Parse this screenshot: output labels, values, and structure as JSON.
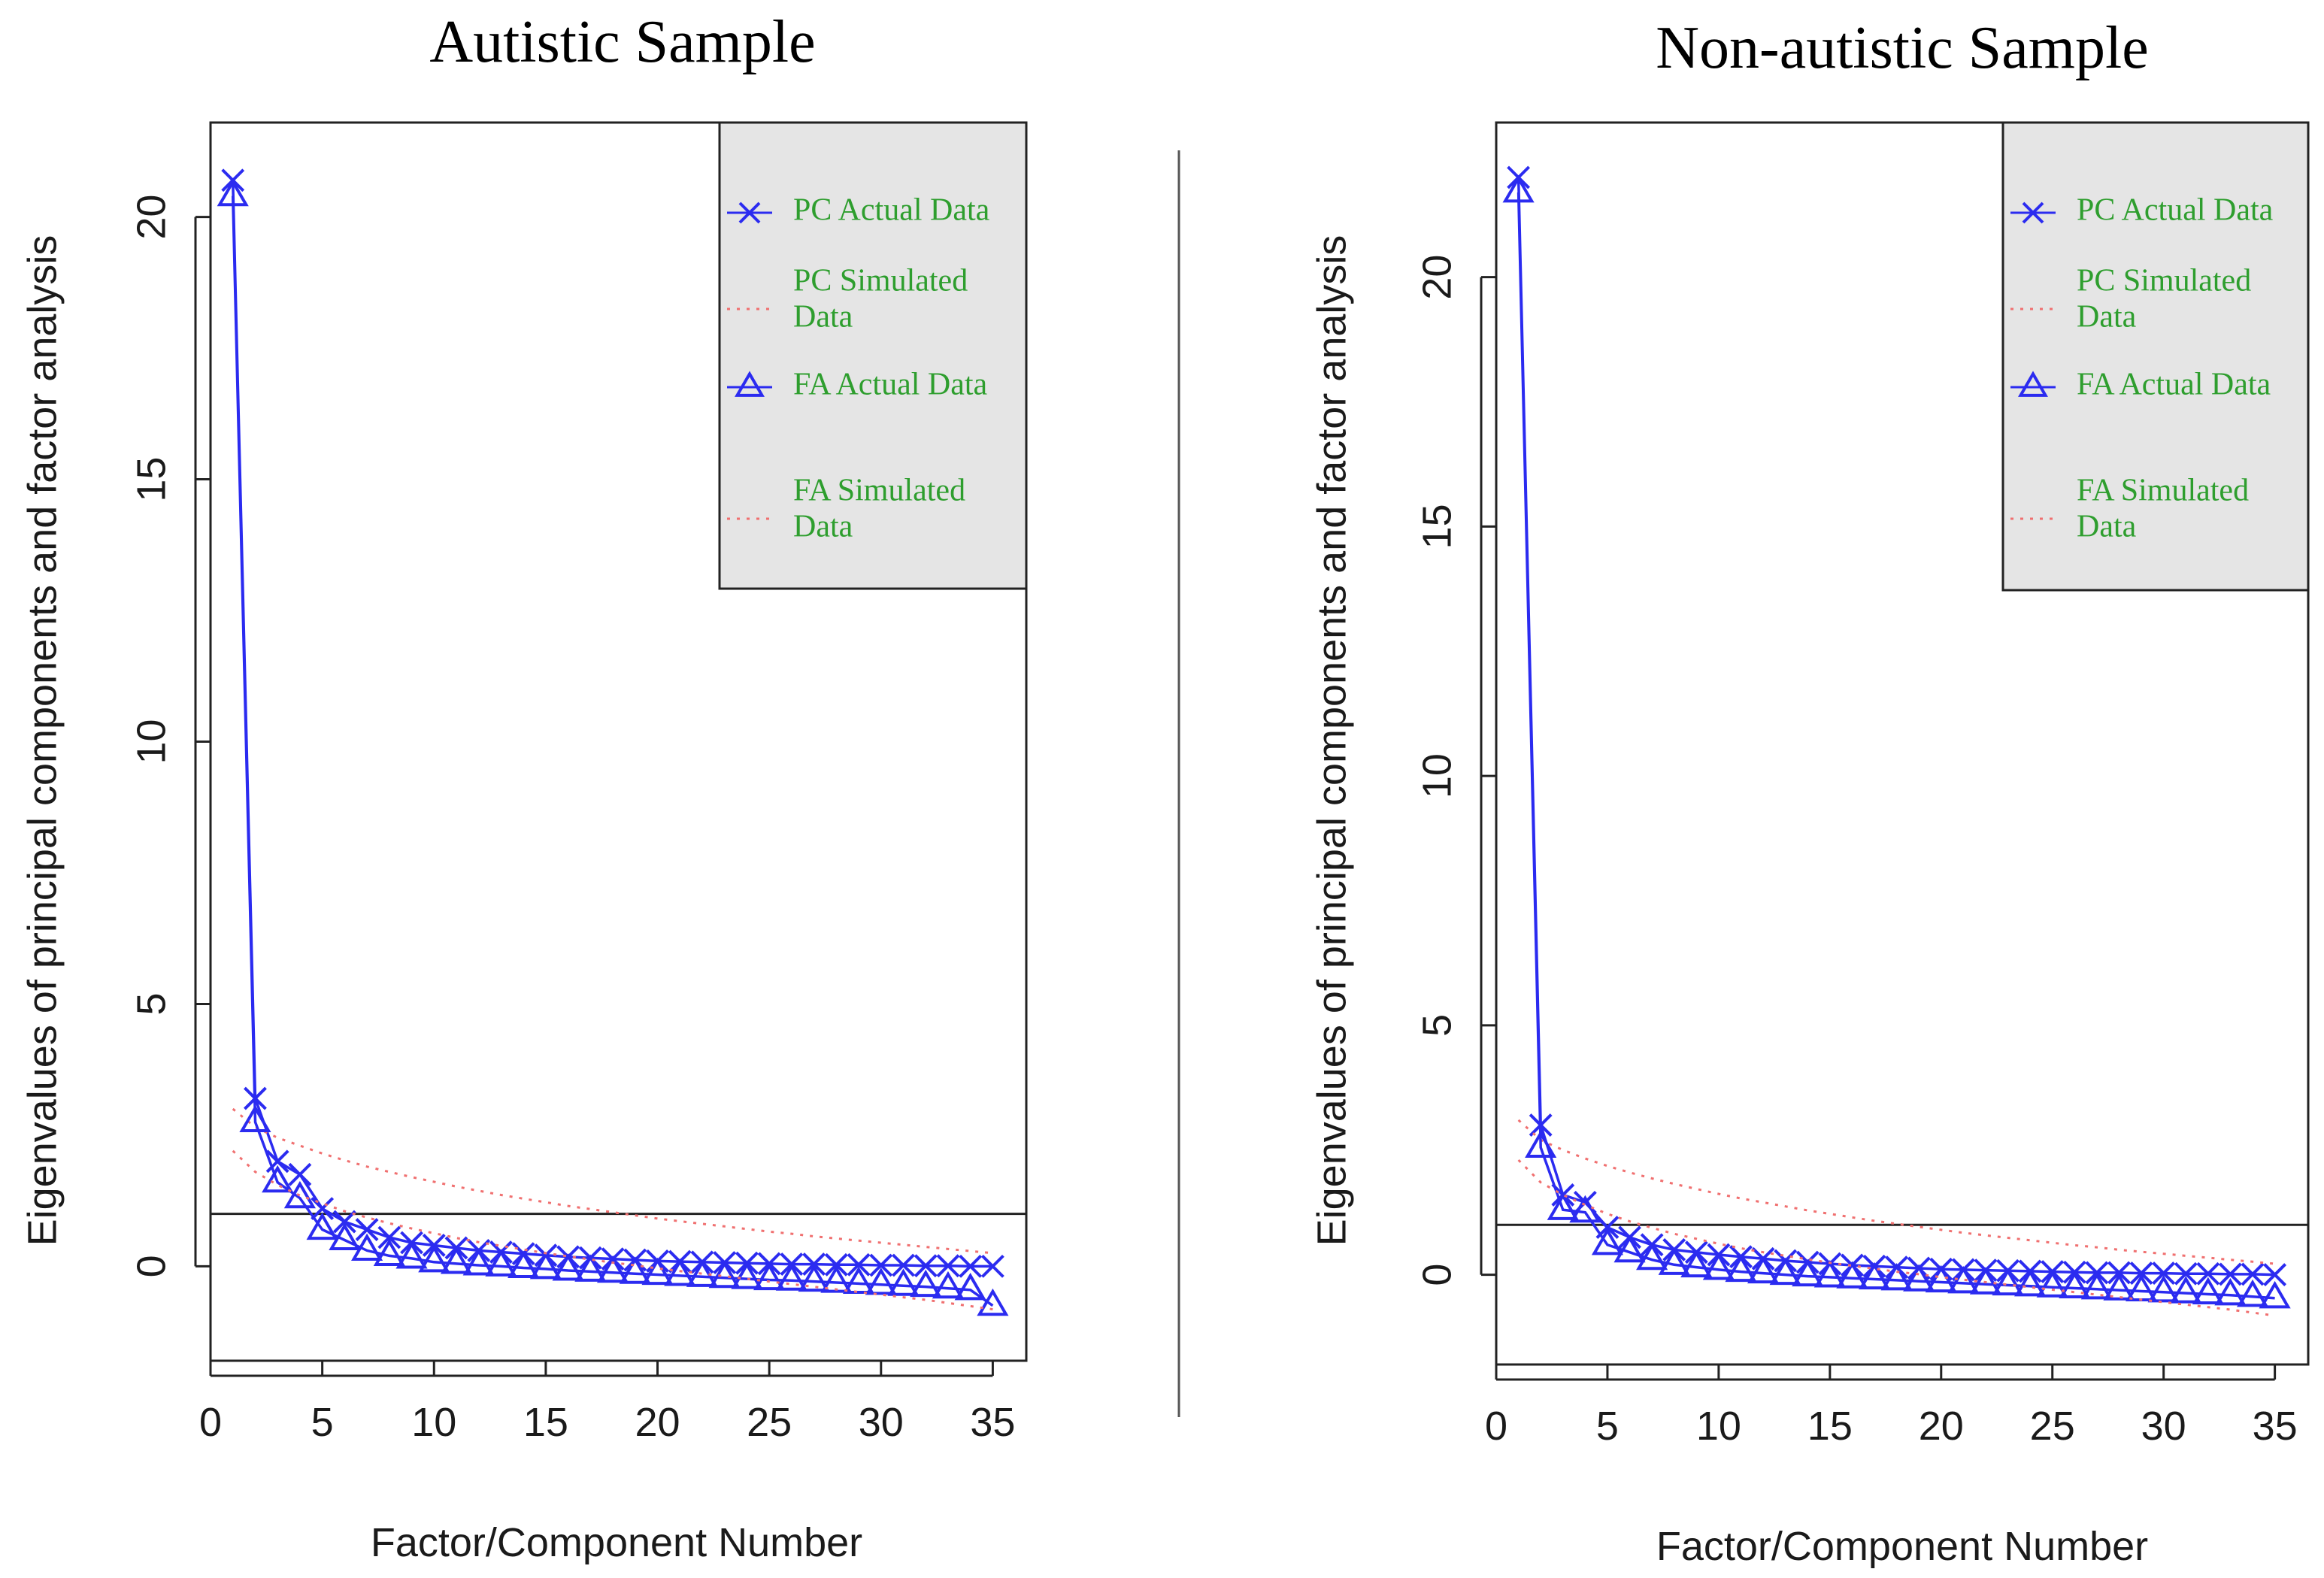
{
  "colors": {
    "actual": "#2b2bf0",
    "simulated": "#f07070",
    "legend_text": "#2e9e2e",
    "legend_bg": "#e5e5e5",
    "axis": "#222222"
  },
  "chart_data": [
    {
      "type": "line",
      "title": "Autistic Sample",
      "xlabel": "Factor/Component Number",
      "ylabel": "Eigenvalues of principal components and factor analysis",
      "xlim": [
        0,
        36.5
      ],
      "ylim": [
        -1.8,
        21.8
      ],
      "xticks": [
        0,
        5,
        10,
        15,
        20,
        25,
        30,
        35
      ],
      "yticks": [
        0,
        5,
        10,
        15,
        20
      ],
      "hline": 1,
      "legend_position": "top-right",
      "legend": [
        {
          "marker": "x",
          "line": "solid",
          "lines": [
            "PC Actual Data"
          ]
        },
        {
          "marker": "none",
          "line": "dotted",
          "lines": [
            "PC Simulated",
            "Data"
          ]
        },
        {
          "marker": "triangle",
          "line": "solid",
          "lines": [
            "FA Actual Data"
          ]
        },
        {
          "marker": "none",
          "line": "dotted",
          "lines": [
            "FA Simulated",
            "Data"
          ]
        }
      ],
      "x": [
        1,
        2,
        3,
        4,
        5,
        6,
        7,
        8,
        9,
        10,
        11,
        12,
        13,
        14,
        15,
        16,
        17,
        18,
        19,
        20,
        21,
        22,
        23,
        24,
        25,
        26,
        27,
        28,
        29,
        30,
        31,
        32,
        33,
        34,
        35
      ],
      "series": [
        {
          "name": "PC Actual Data",
          "marker": "x",
          "values": [
            20.7,
            3.2,
            2.0,
            1.75,
            1.1,
            0.85,
            0.7,
            0.55,
            0.45,
            0.4,
            0.35,
            0.3,
            0.27,
            0.24,
            0.21,
            0.18,
            0.16,
            0.14,
            0.12,
            0.1,
            0.09,
            0.08,
            0.07,
            0.06,
            0.05,
            0.04,
            0.04,
            0.03,
            0.03,
            0.02,
            0.02,
            0.01,
            0.01,
            0.0,
            0.0
          ]
        },
        {
          "name": "PC Simulated Data",
          "marker": "none",
          "values": [
            3.0,
            2.65,
            2.45,
            2.3,
            2.15,
            2.02,
            1.9,
            1.8,
            1.7,
            1.61,
            1.52,
            1.44,
            1.36,
            1.29,
            1.22,
            1.15,
            1.09,
            1.03,
            0.97,
            0.91,
            0.86,
            0.81,
            0.76,
            0.71,
            0.66,
            0.62,
            0.57,
            0.53,
            0.49,
            0.45,
            0.41,
            0.37,
            0.33,
            0.29,
            0.25
          ]
        },
        {
          "name": "FA Actual Data",
          "marker": "triangle",
          "values": [
            20.4,
            2.75,
            1.6,
            1.3,
            0.7,
            0.5,
            0.3,
            0.2,
            0.15,
            0.08,
            0.05,
            0.02,
            0.0,
            -0.03,
            -0.05,
            -0.08,
            -0.1,
            -0.12,
            -0.14,
            -0.16,
            -0.18,
            -0.2,
            -0.22,
            -0.24,
            -0.26,
            -0.27,
            -0.29,
            -0.31,
            -0.33,
            -0.35,
            -0.37,
            -0.39,
            -0.42,
            -0.45,
            -0.75
          ]
        },
        {
          "name": "FA Simulated Data",
          "marker": "none",
          "values": [
            2.2,
            1.8,
            1.55,
            1.35,
            1.2,
            1.05,
            0.93,
            0.82,
            0.72,
            0.63,
            0.54,
            0.46,
            0.39,
            0.32,
            0.25,
            0.19,
            0.13,
            0.07,
            0.02,
            -0.04,
            -0.09,
            -0.14,
            -0.19,
            -0.24,
            -0.29,
            -0.34,
            -0.39,
            -0.44,
            -0.49,
            -0.54,
            -0.59,
            -0.64,
            -0.7,
            -0.76,
            -0.82
          ]
        }
      ]
    },
    {
      "type": "line",
      "title": "Non-autistic Sample",
      "xlabel": "Factor/Component Number",
      "ylabel": "Eigenvalues of principal components and factor analysis",
      "xlim": [
        0,
        36.5
      ],
      "ylim": [
        -1.8,
        23.1
      ],
      "xticks": [
        0,
        5,
        10,
        15,
        20,
        25,
        30,
        35
      ],
      "yticks": [
        0,
        5,
        10,
        15,
        20
      ],
      "hline": 1,
      "legend_position": "top-right",
      "legend": [
        {
          "marker": "x",
          "line": "solid",
          "lines": [
            "PC Actual Data"
          ]
        },
        {
          "marker": "none",
          "line": "dotted",
          "lines": [
            "PC Simulated",
            "Data"
          ]
        },
        {
          "marker": "triangle",
          "line": "solid",
          "lines": [
            "FA Actual Data"
          ]
        },
        {
          "marker": "none",
          "line": "dotted",
          "lines": [
            "FA Simulated",
            "Data"
          ]
        }
      ],
      "x": [
        1,
        2,
        3,
        4,
        5,
        6,
        7,
        8,
        9,
        10,
        11,
        12,
        13,
        14,
        15,
        16,
        17,
        18,
        19,
        20,
        21,
        22,
        23,
        24,
        25,
        26,
        27,
        28,
        29,
        30,
        31,
        32,
        33,
        34,
        35
      ],
      "series": [
        {
          "name": "PC Actual Data",
          "marker": "x",
          "values": [
            22.0,
            3.0,
            1.6,
            1.45,
            0.95,
            0.75,
            0.6,
            0.5,
            0.45,
            0.4,
            0.36,
            0.32,
            0.28,
            0.25,
            0.22,
            0.19,
            0.17,
            0.15,
            0.13,
            0.11,
            0.1,
            0.09,
            0.08,
            0.07,
            0.06,
            0.05,
            0.04,
            0.04,
            0.03,
            0.03,
            0.02,
            0.02,
            0.01,
            0.01,
            0.0
          ]
        },
        {
          "name": "PC Simulated Data",
          "marker": "none",
          "values": [
            3.1,
            2.7,
            2.5,
            2.33,
            2.18,
            2.05,
            1.93,
            1.82,
            1.72,
            1.62,
            1.53,
            1.45,
            1.37,
            1.29,
            1.22,
            1.15,
            1.08,
            1.02,
            0.96,
            0.9,
            0.84,
            0.79,
            0.74,
            0.69,
            0.64,
            0.59,
            0.55,
            0.5,
            0.46,
            0.42,
            0.38,
            0.34,
            0.3,
            0.26,
            0.22
          ]
        },
        {
          "name": "FA Actual Data",
          "marker": "triangle",
          "values": [
            21.7,
            2.55,
            1.3,
            1.25,
            0.6,
            0.45,
            0.3,
            0.2,
            0.15,
            0.1,
            0.06,
            0.03,
            0.0,
            -0.03,
            -0.05,
            -0.07,
            -0.09,
            -0.11,
            -0.13,
            -0.15,
            -0.17,
            -0.19,
            -0.21,
            -0.23,
            -0.25,
            -0.27,
            -0.29,
            -0.31,
            -0.33,
            -0.35,
            -0.37,
            -0.39,
            -0.41,
            -0.44,
            -0.47
          ]
        },
        {
          "name": "FA Simulated Data",
          "marker": "none",
          "values": [
            2.3,
            1.85,
            1.6,
            1.4,
            1.22,
            1.07,
            0.94,
            0.82,
            0.72,
            0.62,
            0.53,
            0.45,
            0.38,
            0.31,
            0.24,
            0.18,
            0.12,
            0.06,
            0.01,
            -0.05,
            -0.1,
            -0.15,
            -0.2,
            -0.25,
            -0.3,
            -0.35,
            -0.4,
            -0.45,
            -0.5,
            -0.55,
            -0.6,
            -0.65,
            -0.7,
            -0.76,
            -0.82
          ]
        }
      ]
    }
  ]
}
